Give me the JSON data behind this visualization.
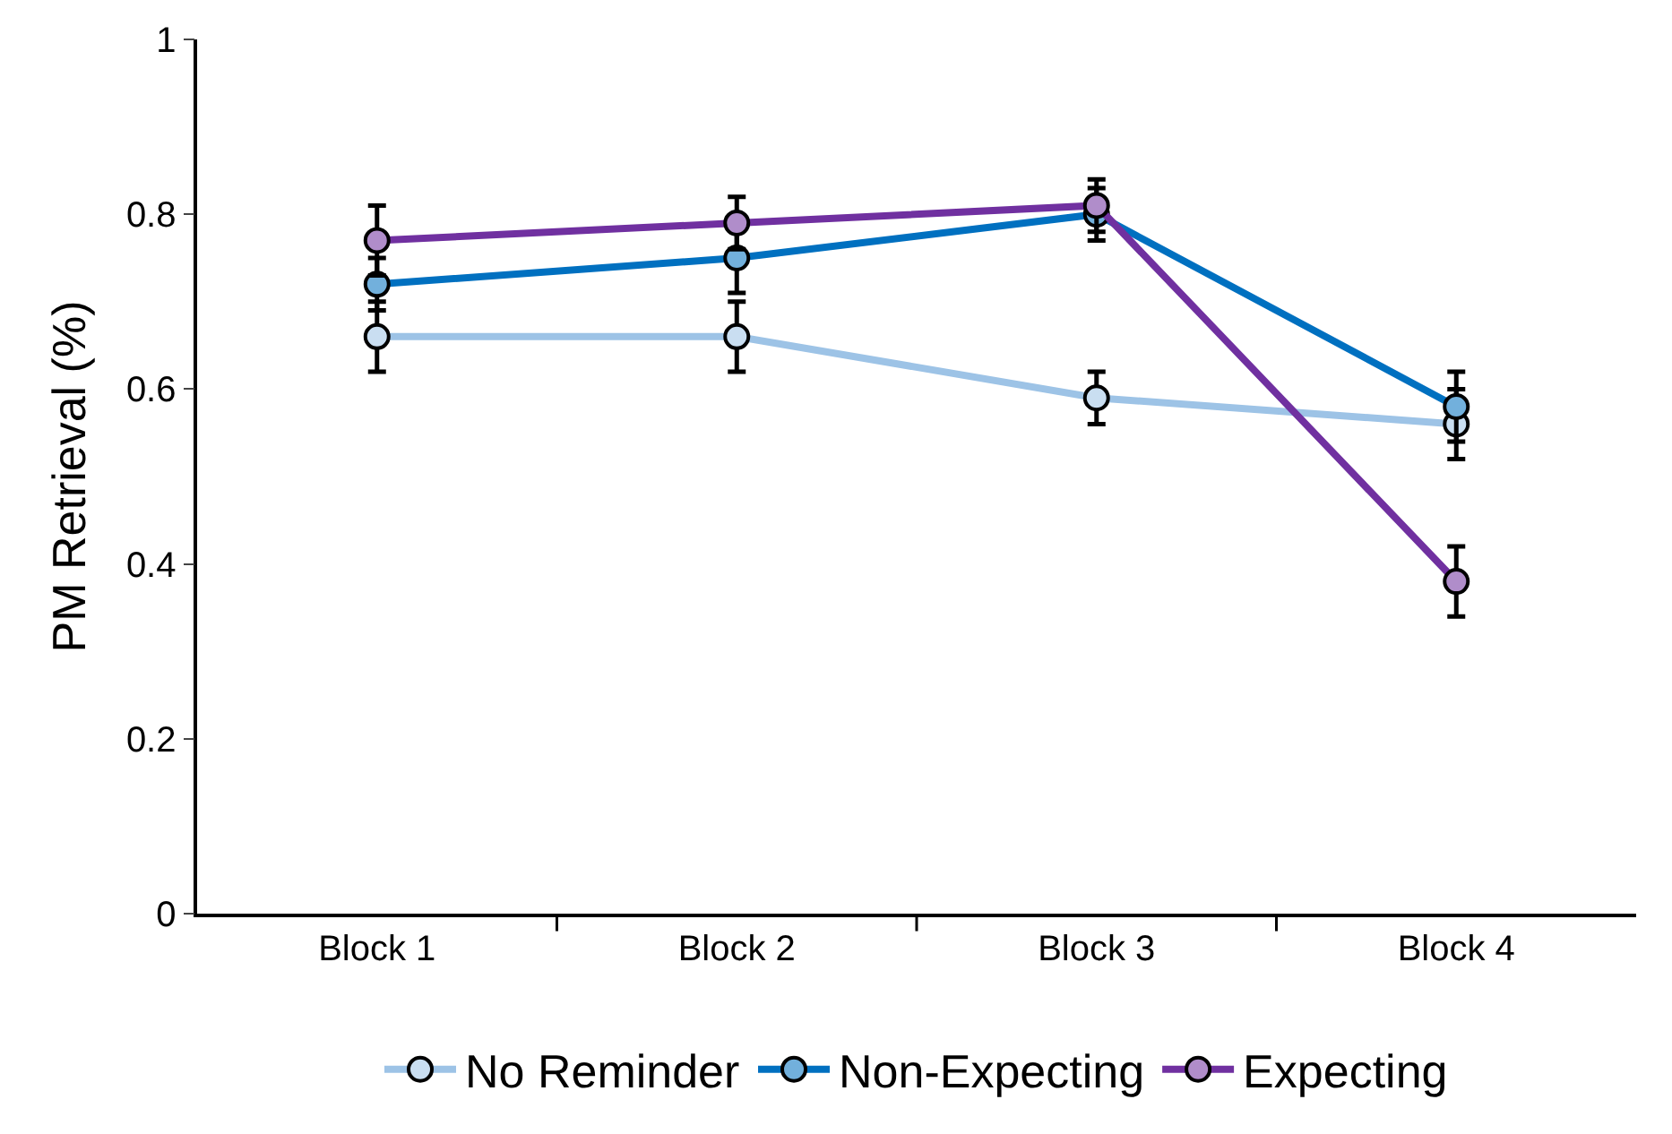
{
  "chart_data": {
    "type": "line",
    "ylabel": "PM Retrieval (%)",
    "categories": [
      "Block 1",
      "Block 2",
      "Block 3",
      "Block 4"
    ],
    "series": [
      {
        "name": "No Reminder",
        "color": "#9dc3e6",
        "values": [
          0.66,
          0.66,
          0.59,
          0.56
        ],
        "errors": [
          0.04,
          0.04,
          0.03,
          0.04
        ]
      },
      {
        "name": "Non-Expecting",
        "color": "#0070c0",
        "values": [
          0.72,
          0.75,
          0.8,
          0.58
        ],
        "errors": [
          0.03,
          0.04,
          0.03,
          0.04
        ]
      },
      {
        "name": "Expecting",
        "color": "#7030a0",
        "values": [
          0.77,
          0.79,
          0.81,
          0.38
        ],
        "errors": [
          0.04,
          0.03,
          0.03,
          0.04
        ]
      }
    ],
    "ylim": [
      0,
      1
    ],
    "yticks": [
      0,
      0.2,
      0.4,
      0.6,
      0.8,
      1
    ],
    "legend": "bottom",
    "marker": "circle",
    "line_style": "solid"
  }
}
